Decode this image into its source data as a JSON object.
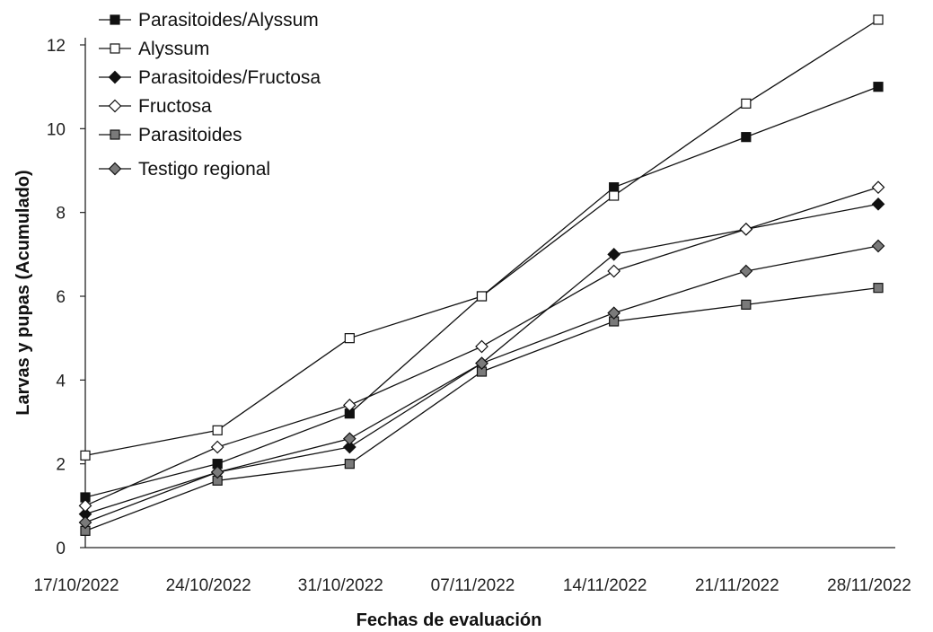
{
  "chart_data": {
    "type": "line",
    "title": "",
    "xlabel": "Fechas de evaluación",
    "ylabel": "Larvas y pupas (Acumulado)",
    "ylim": [
      0,
      12
    ],
    "yticks": [
      0,
      2,
      4,
      6,
      8,
      10,
      12
    ],
    "categories": [
      "17/10/2022",
      "24/10/2022",
      "31/10/2022",
      "07/11/2022",
      "14/11/2022",
      "21/11/2022",
      "28/11/2022"
    ],
    "grid": false,
    "legend_position": "top-left",
    "series": [
      {
        "name": "Parasitoides/Alyssum",
        "marker": "square",
        "fill": "#111111",
        "values": [
          1.2,
          2.0,
          3.2,
          6.0,
          8.6,
          9.8,
          11.0
        ]
      },
      {
        "name": "Alyssum",
        "marker": "square",
        "fill": "#ffffff",
        "values": [
          2.2,
          2.8,
          5.0,
          6.0,
          8.4,
          10.6,
          12.6
        ]
      },
      {
        "name": "Parasitoides/Fructosa",
        "marker": "diamond",
        "fill": "#111111",
        "values": [
          0.8,
          1.8,
          2.4,
          4.4,
          7.0,
          7.6,
          8.2
        ]
      },
      {
        "name": "Fructosa",
        "marker": "diamond",
        "fill": "#ffffff",
        "values": [
          1.0,
          2.4,
          3.4,
          4.8,
          6.6,
          7.6,
          8.6
        ]
      },
      {
        "name": "Parasitoides",
        "marker": "square",
        "fill": "#7a7a7a",
        "values": [
          0.4,
          1.6,
          2.0,
          4.2,
          5.4,
          5.8,
          6.2
        ]
      },
      {
        "name": "Testigo regional",
        "marker": "diamond",
        "fill": "#7a7a7a",
        "values": [
          0.6,
          1.8,
          2.6,
          4.4,
          5.6,
          6.6,
          7.2
        ]
      }
    ]
  }
}
